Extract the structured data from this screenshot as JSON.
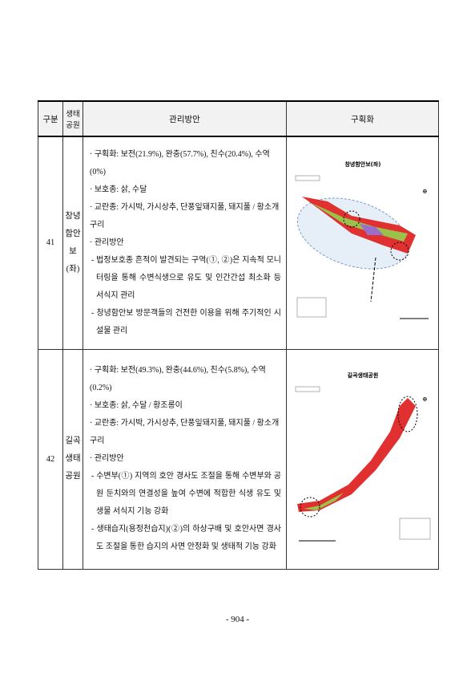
{
  "header": [
    "구분",
    "생태 공원",
    "관리방안",
    "구획화"
  ],
  "rows": [
    {
      "no": "41",
      "park": [
        "창녕",
        "함안보",
        "(좌)"
      ],
      "map_title": "창녕함안보(좌)",
      "items": [
        "· 구획화: 보전(21.9%), 완충(57.7%), 친수(20.4%), 수역(0%)",
        "· 보호종: 삵, 수달",
        "· 교란종: 가시박, 가시상추, 단풍잎돼지풀, 돼지풀 / 황소개구리",
        "· 관리방안",
        "- 법정보호종 흔적이 발견되는 구역(①, ②)은 지속적 모니터링을 통해 수변식생으로 유도 및 인간간섭 최소화 등 서식지 관리",
        "- 창녕함안보 방문객들의 건전한 이용을 위해 주기적인 시설물 관리"
      ]
    },
    {
      "no": "42",
      "park": [
        "길곡",
        "생태",
        "공원"
      ],
      "map_title": "길곡생태공원",
      "items": [
        "· 구획화: 보전(49.3%), 완충(44.6%), 친수(5.8%), 수역(0.2%)",
        "· 보호종: 삵, 수달 / 황조롱이",
        "· 교란종: 가시박, 가시상추, 단풍잎돼지풀, 돼지풀 / 황소개구리",
        "· 관리방안",
        "- 수변부(①) 지역의 호안 경사도 조절을 통해 수변부와 공원 둔치와의 연결성을 높여 수변에 적합한 식생 유도 및 생물 서식지 기능 강화",
        "- 생태습지(용정천습지)(②)의 하상구배 및 호안사면 경사도 조절을 통한 습지의 사면 안정화 및 생태적 기능 강화"
      ]
    }
  ],
  "page_number": "- 904 -"
}
